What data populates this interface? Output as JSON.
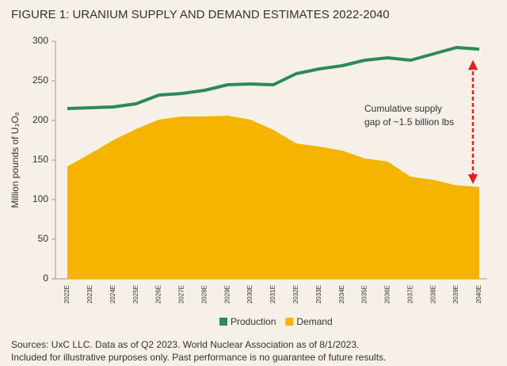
{
  "chart_data": {
    "type": "line",
    "title": "FIGURE 1: URANIUM SUPPLY AND DEMAND ESTIMATES 2022-2040",
    "y_label": "Million pounds of U₃O₈",
    "categories": [
      "2022E",
      "2023E",
      "2024E",
      "2025E",
      "2026E",
      "2027E",
      "2028E",
      "2029E",
      "2030E",
      "2031E",
      "2032E",
      "2033E",
      "2034E",
      "2035E",
      "2036E",
      "2037E",
      "2038E",
      "2039E",
      "2040E"
    ],
    "series": [
      {
        "name": "Production",
        "color": "#2b8a57",
        "values": [
          215,
          216,
          217,
          221,
          232,
          234,
          238,
          245,
          246,
          245,
          259,
          265,
          269,
          276,
          279,
          276,
          284,
          292,
          290
        ]
      },
      {
        "name": "Demand",
        "color": "#f4b400",
        "fill": true,
        "values": [
          142,
          158,
          175,
          189,
          201,
          205,
          205,
          206,
          201,
          188,
          171,
          167,
          162,
          152,
          148,
          129,
          125,
          118,
          116
        ]
      }
    ],
    "ylim": [
      0,
      300
    ],
    "yticks": [
      0,
      50,
      100,
      150,
      200,
      250,
      300
    ],
    "annotation": [
      "Cumulative supply",
      "gap of ~1.5 billion lbs"
    ],
    "notes": [
      "Sources: UxC LLC. Data as of Q2 2023. World Nuclear Association as of 8/1/2023.",
      "Included for illustrative purposes only. Past performance is no guarantee of future results."
    ]
  }
}
